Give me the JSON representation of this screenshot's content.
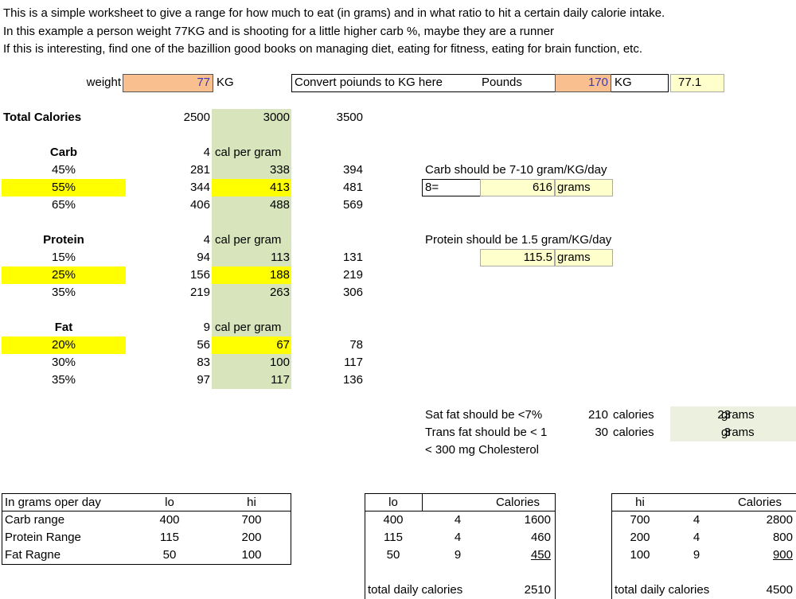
{
  "intro": [
    "This is a simple worksheet to give a range for how much to eat (in grams) and in what ratio to hit a certain daily calorie intake.",
    "In this example a person weight 77KG and is shooting for a little higher carb %, maybe they are a runner",
    "If this is interesting, find one of the bazillion good books on managing diet, eating for fitness, eating for brain function, etc."
  ],
  "weight": {
    "label": "weight",
    "value": "77",
    "unit": "KG"
  },
  "convert": {
    "label": "Convert poiunds to KG here",
    "pounds_label": "Pounds",
    "pounds_value": "170",
    "kg_label": "KG",
    "kg_value": "77.1"
  },
  "total_calories": {
    "label": "Total Calories",
    "values": [
      "2500",
      "3000",
      "3500"
    ]
  },
  "carb": {
    "label": "Carb",
    "cal_per_gram": "4",
    "unit": "cal per gram",
    "rows": [
      {
        "pct": "45%",
        "v": [
          "281",
          "338",
          "394"
        ]
      },
      {
        "pct": "55%",
        "v": [
          "344",
          "413",
          "481"
        ]
      },
      {
        "pct": "65%",
        "v": [
          "406",
          "488",
          "569"
        ]
      }
    ]
  },
  "protein": {
    "label": "Protein",
    "cal_per_gram": "4",
    "unit": "cal per gram",
    "rows": [
      {
        "pct": "15%",
        "v": [
          "94",
          "113",
          "131"
        ]
      },
      {
        "pct": "25%",
        "v": [
          "156",
          "188",
          "219"
        ]
      },
      {
        "pct": "35%",
        "v": [
          "219",
          "263",
          "306"
        ]
      }
    ]
  },
  "fat": {
    "label": "Fat",
    "cal_per_gram": "9",
    "unit": "cal per gram",
    "rows": [
      {
        "pct": "20%",
        "v": [
          "56",
          "67",
          "78"
        ]
      },
      {
        "pct": "30%",
        "v": [
          "83",
          "100",
          "117"
        ]
      },
      {
        "pct": "35%",
        "v": [
          "97",
          "117",
          "136"
        ]
      }
    ]
  },
  "carb_note": {
    "text": "Carb should be 7-10 gram/KG/day",
    "factor": "8=",
    "value": "616",
    "unit": "grams"
  },
  "protein_note": {
    "text": "Protein should be 1.5 gram/KG/day",
    "value": "115.5",
    "unit": "grams"
  },
  "satfat": {
    "text": "Sat fat should be <7%",
    "cal": "210",
    "cal_unit": "calories",
    "grams": "23",
    "grams_unit": "grams"
  },
  "transfat": {
    "text": "Trans fat should be < 1",
    "cal": "30",
    "cal_unit": "calories",
    "grams": "3",
    "grams_unit": "grams"
  },
  "cholesterol": {
    "text": "< 300 mg Cholesterol"
  },
  "range_table": {
    "headers": [
      "In grams oper day",
      "lo",
      "hi"
    ],
    "rows": [
      [
        "Carb range",
        "400",
        "700"
      ],
      [
        "Protein Range",
        "115",
        "200"
      ],
      [
        "Fat Ragne",
        "50",
        "100"
      ]
    ]
  },
  "lo_table": {
    "headers": [
      "lo",
      "Calories"
    ],
    "rows": [
      [
        "400",
        "4",
        "1600"
      ],
      [
        "115",
        "4",
        "460"
      ],
      [
        "50",
        "9",
        "450"
      ]
    ],
    "total_label": "total daily calories",
    "total": "2510"
  },
  "hi_table": {
    "headers": [
      "hi",
      "Calories"
    ],
    "rows": [
      [
        "700",
        "4",
        "2800"
      ],
      [
        "200",
        "4",
        "800"
      ],
      [
        "100",
        "9",
        "900"
      ]
    ],
    "total_label": "total daily calories",
    "total": "4500"
  }
}
